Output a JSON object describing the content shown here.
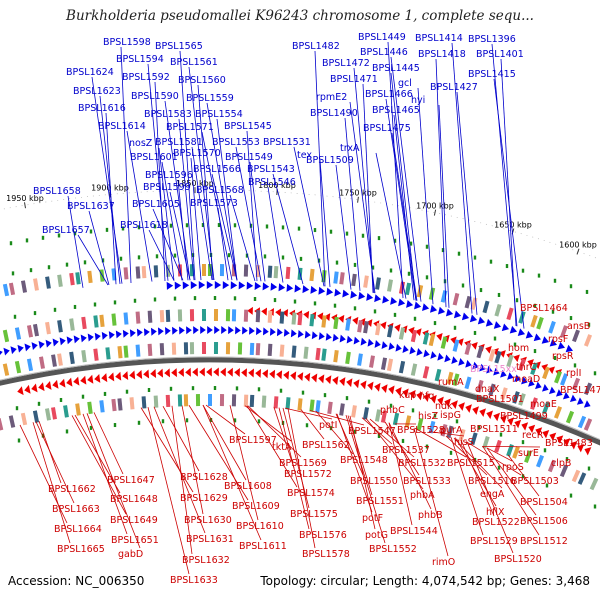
{
  "title": "Burkholderia pseudomallei K96243 chromosome 1, complete sequ...",
  "accession_label": "Accession: NC_006350",
  "summary_label": "Topology: circular; Length: 4,074,542 bp; Genes: 3,468",
  "colors": {
    "top_labels": "#0000cc",
    "bottom_labels": "#cc0000",
    "highlight_label": "#ee88cc",
    "forward_arrow": "#0000ee",
    "reverse_arrow": "#ee0000",
    "backbone": "#555555",
    "ruler": "#333333",
    "tick_mark": "#1a8a1a"
  },
  "ruler_ticks": [
    "1600 kbp",
    "1650 kbp",
    "1700 kbp",
    "1750 kbp",
    "1800 kbp",
    "1850 kbp",
    "1900 kbp",
    "1950 kbp"
  ],
  "top_labels": [
    "BPSL1598",
    "BPSL1565",
    "BPSL1594",
    "BPSL1561",
    "BPSL1624",
    "BPSL1592",
    "BPSL1560",
    "BPSL1623",
    "BPSL1590",
    "BPSL1559",
    "BPSL1616",
    "BPSL1583",
    "BPSL1554",
    "BPSL1614",
    "BPSL1571",
    "BPSL1545",
    "nosZ",
    "BPSL1581",
    "BPSL1553",
    "BPSL1531",
    "BPSL1570",
    "BPSL1549",
    "BPSL1601",
    "BPSL1566",
    "BPSL1543",
    "BPSL1596",
    "BPSL1546",
    "BPSL1599",
    "BPSL1568",
    "BPSL1605",
    "BPSL1573",
    "BPSL1658",
    "BPSL1637",
    "BPSL1618",
    "BPSL1657",
    "BPSL1482",
    "BPSL1449",
    "BPSL1414",
    "BPSL1396",
    "BPSL1446",
    "BPSL1418",
    "BPSL1401",
    "BPSL1472",
    "BPSL1445",
    "BPSL1415",
    "BPSL1471",
    "gcl",
    "BPSL1427",
    "rpmE2",
    "BPSL1466",
    "hyi",
    "BPSL1490",
    "BPSL1465",
    "BPSL1475",
    "trxA",
    "tex",
    "BPSL1509"
  ],
  "bottom_labels": [
    "BPSL1464",
    "ansB",
    "rpsF",
    "hom",
    "rpsR",
    "BPSL15xx",
    "thrC",
    "rplI",
    "moaD",
    "rumA",
    "BPSL1476",
    "kup",
    "hfq",
    "dnaX",
    "ndk",
    "BPSL1501",
    "moaE",
    "hisZ",
    "ispG",
    "phbC",
    "BPSL1499",
    "potI",
    "BPSL1547",
    "BPSL1528",
    "purA",
    "hisS",
    "BPSL1511",
    "recR",
    "BPSL1483",
    "BPSL1562",
    "BPSL1537",
    "BPSL1548",
    "BPSL1532",
    "BPSL1515",
    "surE",
    "rpoS",
    "clpB",
    "BPSL1597",
    "tktA",
    "BPSL1569",
    "BPSL1572",
    "BPSL1550",
    "BPSL1533",
    "BPSL1516",
    "engA",
    "BPSL1503",
    "BPSL1662",
    "BPSL1647",
    "BPSL1628",
    "BPSL1608",
    "BPSL1574",
    "phbA",
    "BPSL1551",
    "BPSL1504",
    "BPSL1663",
    "BPSL1648",
    "BPSL1629",
    "BPSL1609",
    "BPSL1575",
    "BPSL1522",
    "hflX",
    "BPSL1664",
    "BPSL1649",
    "BPSL1630",
    "BPSL1610",
    "potF",
    "phbB",
    "BPSL1506",
    "BPSL1512",
    "BPSL1544",
    "BPSL1576",
    "BPSL1665",
    "BPSL1651",
    "BPSL1631",
    "BPSL1611",
    "potG",
    "BPSL1529",
    "BPSL1552",
    "BPSL1520",
    "gabD",
    "BPSL1632",
    "BPSL1578",
    "rimO",
    "BPSL1633"
  ]
}
